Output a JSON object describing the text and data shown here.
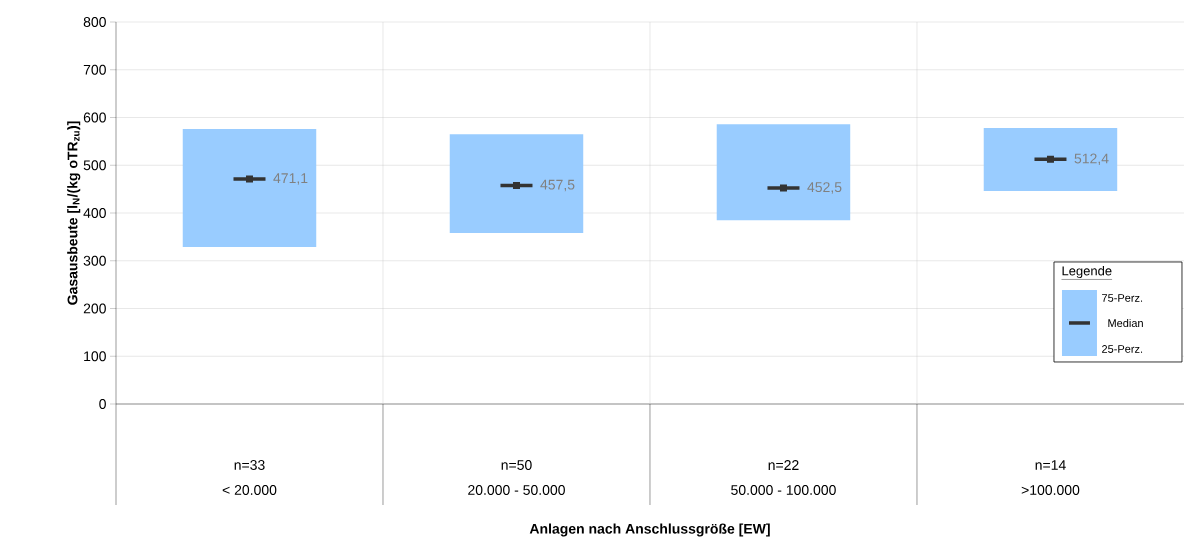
{
  "chart_data": {
    "type": "bar",
    "xlabel": "Anlagen nach Anschlussgröße [EW]",
    "ylabel": "Gasausbeute [l$_{N}$/(kg oTR$_{zu}$)]",
    "categories": [
      "< 20.000",
      "20.000 - 50.000",
      "50.000 - 100.000",
      ">100.000"
    ],
    "series": [
      {
        "color": "#99ccff",
        "base": [
          329,
          358,
          385,
          446
        ],
        "values": [
          247,
          207,
          201,
          132
        ]
      },
      {
        "type": "scatter",
        "name": "Median",
        "color": "#333333",
        "values": [
          471.1,
          457.5,
          452.5,
          512.4
        ],
        "value_labels": [
          "471,1",
          "457,5",
          "452,5",
          "512,4"
        ]
      }
    ],
    "ylim": [
      0,
      800
    ],
    "yticks": [
      0,
      100,
      200,
      300,
      400,
      500,
      600,
      700,
      800
    ],
    "grid": true,
    "legend": "right",
    "legend_title": "Legende",
    "annotations": [
      "n=33",
      "n=50",
      "n=22",
      "n=14",
      "75-Perz.",
      "25-Perz."
    ]
  }
}
